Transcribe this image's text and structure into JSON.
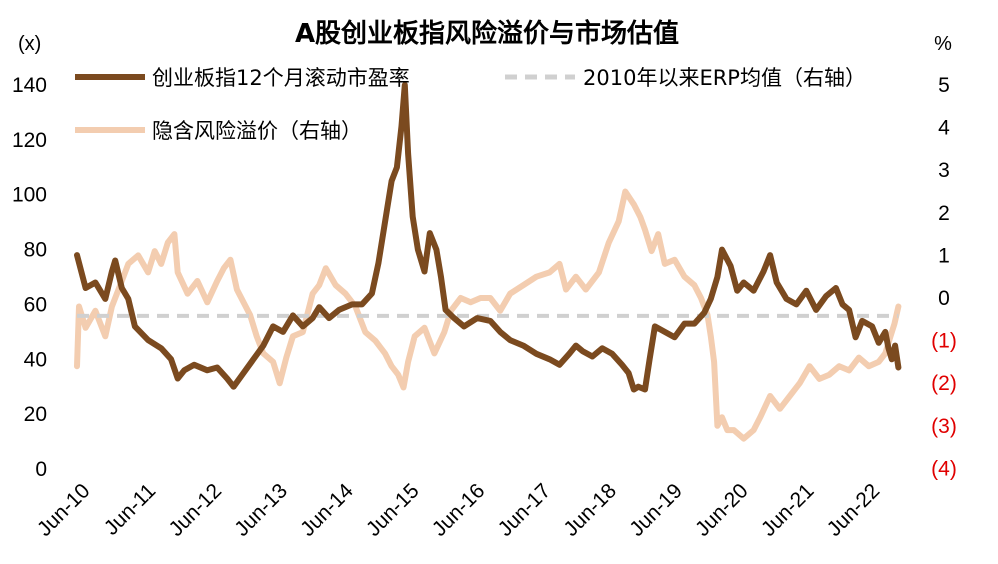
{
  "chart_data": {
    "type": "line",
    "title": "A股创业板指风险溢价与市场估值",
    "left_axis": {
      "unit": "(x)",
      "ylim": [
        0,
        150
      ],
      "ticks": [
        {
          "value": 0,
          "label": "0"
        },
        {
          "value": 20,
          "label": "20"
        },
        {
          "value": 40,
          "label": "40"
        },
        {
          "value": 60,
          "label": "60"
        },
        {
          "value": 80,
          "label": "80"
        },
        {
          "value": 100,
          "label": "100"
        },
        {
          "value": 120,
          "label": "120"
        },
        {
          "value": 140,
          "label": "140"
        }
      ]
    },
    "right_axis": {
      "unit": "%",
      "ylim": [
        -4,
        5.5
      ],
      "ticks": [
        {
          "value": 5,
          "label": "5"
        },
        {
          "value": 4,
          "label": "4"
        },
        {
          "value": 3,
          "label": "3"
        },
        {
          "value": 2,
          "label": "2"
        },
        {
          "value": 1,
          "label": "1"
        },
        {
          "value": 0,
          "label": "0"
        },
        {
          "value": -1,
          "label": "(1)"
        },
        {
          "value": -2,
          "label": "(2)"
        },
        {
          "value": -3,
          "label": "(3)"
        },
        {
          "value": -4,
          "label": "(4)"
        }
      ],
      "negative_label_color": "#e00000"
    },
    "x_axis": {
      "range": [
        2010.42,
        2023.0
      ],
      "ticks": [
        {
          "value": 2010.42,
          "label": "Jun-10"
        },
        {
          "value": 2011.42,
          "label": "Jun-11"
        },
        {
          "value": 2012.42,
          "label": "Jun-12"
        },
        {
          "value": 2013.42,
          "label": "Jun-13"
        },
        {
          "value": 2014.42,
          "label": "Jun-14"
        },
        {
          "value": 2015.42,
          "label": "Jun-15"
        },
        {
          "value": 2016.42,
          "label": "Jun-16"
        },
        {
          "value": 2017.42,
          "label": "Jun-17"
        },
        {
          "value": 2018.42,
          "label": "Jun-18"
        },
        {
          "value": 2019.42,
          "label": "Jun-19"
        },
        {
          "value": 2020.42,
          "label": "Jun-20"
        },
        {
          "value": 2021.42,
          "label": "Jun-21"
        },
        {
          "value": 2022.42,
          "label": "Jun-22"
        }
      ]
    },
    "legend": {
      "pe": "创业板指12个月滚动市盈率",
      "erp_avg": "2010年以来ERP均值（右轴）",
      "erp": "隐含风险溢价（右轴）"
    },
    "series": [
      {
        "key": "pe",
        "name": "创业板指12个月滚动市盈率",
        "axis": "left",
        "color": "#7b4a1f",
        "points": [
          [
            2010.42,
            78
          ],
          [
            2010.55,
            66
          ],
          [
            2010.7,
            68
          ],
          [
            2010.85,
            62
          ],
          [
            2010.95,
            72
          ],
          [
            2011.0,
            76
          ],
          [
            2011.1,
            66
          ],
          [
            2011.2,
            62
          ],
          [
            2011.3,
            52
          ],
          [
            2011.5,
            47
          ],
          [
            2011.7,
            44
          ],
          [
            2011.85,
            40
          ],
          [
            2011.95,
            33
          ],
          [
            2012.05,
            36
          ],
          [
            2012.2,
            38
          ],
          [
            2012.4,
            36
          ],
          [
            2012.55,
            37
          ],
          [
            2012.7,
            33
          ],
          [
            2012.8,
            30
          ],
          [
            2012.95,
            35
          ],
          [
            2013.1,
            40
          ],
          [
            2013.25,
            45
          ],
          [
            2013.4,
            52
          ],
          [
            2013.55,
            50
          ],
          [
            2013.7,
            56
          ],
          [
            2013.85,
            52
          ],
          [
            2014.0,
            55
          ],
          [
            2014.1,
            59
          ],
          [
            2014.25,
            55
          ],
          [
            2014.4,
            58
          ],
          [
            2014.6,
            60
          ],
          [
            2014.75,
            60
          ],
          [
            2014.9,
            64
          ],
          [
            2015.0,
            75
          ],
          [
            2015.1,
            90
          ],
          [
            2015.2,
            105
          ],
          [
            2015.28,
            110
          ],
          [
            2015.35,
            125
          ],
          [
            2015.4,
            140
          ],
          [
            2015.45,
            115
          ],
          [
            2015.52,
            92
          ],
          [
            2015.6,
            80
          ],
          [
            2015.7,
            72
          ],
          [
            2015.78,
            86
          ],
          [
            2015.88,
            80
          ],
          [
            2015.95,
            70
          ],
          [
            2016.02,
            58
          ],
          [
            2016.15,
            55
          ],
          [
            2016.3,
            52
          ],
          [
            2016.5,
            55
          ],
          [
            2016.7,
            54
          ],
          [
            2016.85,
            50
          ],
          [
            2017.0,
            47
          ],
          [
            2017.2,
            45
          ],
          [
            2017.4,
            42
          ],
          [
            2017.6,
            40
          ],
          [
            2017.75,
            38
          ],
          [
            2017.9,
            42
          ],
          [
            2018.0,
            45
          ],
          [
            2018.1,
            43
          ],
          [
            2018.25,
            41
          ],
          [
            2018.4,
            44
          ],
          [
            2018.55,
            42
          ],
          [
            2018.7,
            38
          ],
          [
            2018.8,
            35
          ],
          [
            2018.88,
            29
          ],
          [
            2018.95,
            30
          ],
          [
            2019.05,
            29
          ],
          [
            2019.12,
            40
          ],
          [
            2019.2,
            52
          ],
          [
            2019.35,
            50
          ],
          [
            2019.5,
            48
          ],
          [
            2019.65,
            53
          ],
          [
            2019.8,
            53
          ],
          [
            2019.95,
            57
          ],
          [
            2020.05,
            62
          ],
          [
            2020.15,
            70
          ],
          [
            2020.22,
            80
          ],
          [
            2020.35,
            74
          ],
          [
            2020.45,
            65
          ],
          [
            2020.55,
            68
          ],
          [
            2020.7,
            65
          ],
          [
            2020.85,
            72
          ],
          [
            2020.95,
            78
          ],
          [
            2021.05,
            68
          ],
          [
            2021.2,
            62
          ],
          [
            2021.35,
            60
          ],
          [
            2021.5,
            65
          ],
          [
            2021.65,
            58
          ],
          [
            2021.8,
            63
          ],
          [
            2021.95,
            66
          ],
          [
            2022.05,
            60
          ],
          [
            2022.15,
            58
          ],
          [
            2022.25,
            48
          ],
          [
            2022.35,
            54
          ],
          [
            2022.5,
            52
          ],
          [
            2022.6,
            46
          ],
          [
            2022.7,
            50
          ],
          [
            2022.75,
            44
          ],
          [
            2022.8,
            40
          ],
          [
            2022.85,
            45
          ],
          [
            2022.9,
            37
          ]
        ]
      },
      {
        "key": "erp",
        "name": "隐含风险溢价（右轴）",
        "axis": "right",
        "color": "#f3cdb0",
        "points": [
          [
            2010.42,
            -1.6
          ],
          [
            2010.45,
            -0.2
          ],
          [
            2010.55,
            -0.7
          ],
          [
            2010.7,
            -0.3
          ],
          [
            2010.85,
            -0.9
          ],
          [
            2010.95,
            -0.2
          ],
          [
            2011.05,
            0.2
          ],
          [
            2011.2,
            0.8
          ],
          [
            2011.35,
            1.0
          ],
          [
            2011.5,
            0.6
          ],
          [
            2011.6,
            1.1
          ],
          [
            2011.7,
            0.8
          ],
          [
            2011.8,
            1.3
          ],
          [
            2011.9,
            1.5
          ],
          [
            2011.95,
            0.6
          ],
          [
            2012.1,
            0.1
          ],
          [
            2012.25,
            0.4
          ],
          [
            2012.4,
            -0.1
          ],
          [
            2012.55,
            0.4
          ],
          [
            2012.65,
            0.7
          ],
          [
            2012.75,
            0.9
          ],
          [
            2012.85,
            0.2
          ],
          [
            2012.95,
            -0.1
          ],
          [
            2013.05,
            -0.4
          ],
          [
            2013.15,
            -0.9
          ],
          [
            2013.25,
            -1.3
          ],
          [
            2013.4,
            -1.5
          ],
          [
            2013.5,
            -2.0
          ],
          [
            2013.6,
            -1.4
          ],
          [
            2013.7,
            -0.9
          ],
          [
            2013.85,
            -0.8
          ],
          [
            2014.0,
            0.1
          ],
          [
            2014.1,
            0.3
          ],
          [
            2014.2,
            0.7
          ],
          [
            2014.35,
            0.3
          ],
          [
            2014.5,
            0.1
          ],
          [
            2014.65,
            -0.2
          ],
          [
            2014.8,
            -0.8
          ],
          [
            2014.95,
            -1.0
          ],
          [
            2015.1,
            -1.3
          ],
          [
            2015.2,
            -1.6
          ],
          [
            2015.3,
            -1.8
          ],
          [
            2015.38,
            -2.1
          ],
          [
            2015.45,
            -1.5
          ],
          [
            2015.55,
            -0.9
          ],
          [
            2015.7,
            -0.7
          ],
          [
            2015.85,
            -1.3
          ],
          [
            2016.0,
            -0.8
          ],
          [
            2016.1,
            -0.3
          ],
          [
            2016.25,
            0.0
          ],
          [
            2016.4,
            -0.1
          ],
          [
            2016.55,
            0.0
          ],
          [
            2016.7,
            0.0
          ],
          [
            2016.85,
            -0.3
          ],
          [
            2017.0,
            0.1
          ],
          [
            2017.2,
            0.3
          ],
          [
            2017.4,
            0.5
          ],
          [
            2017.6,
            0.6
          ],
          [
            2017.75,
            0.8
          ],
          [
            2017.85,
            0.2
          ],
          [
            2018.0,
            0.5
          ],
          [
            2018.15,
            0.2
          ],
          [
            2018.35,
            0.6
          ],
          [
            2018.5,
            1.3
          ],
          [
            2018.65,
            1.8
          ],
          [
            2018.75,
            2.5
          ],
          [
            2018.88,
            2.2
          ],
          [
            2018.98,
            1.9
          ],
          [
            2019.05,
            1.6
          ],
          [
            2019.15,
            1.1
          ],
          [
            2019.25,
            1.5
          ],
          [
            2019.35,
            0.8
          ],
          [
            2019.5,
            0.9
          ],
          [
            2019.65,
            0.5
          ],
          [
            2019.8,
            0.3
          ],
          [
            2019.9,
            0.0
          ],
          [
            2020.0,
            -0.4
          ],
          [
            2020.05,
            -0.9
          ],
          [
            2020.1,
            -1.5
          ],
          [
            2020.15,
            -3.0
          ],
          [
            2020.22,
            -2.8
          ],
          [
            2020.3,
            -3.1
          ],
          [
            2020.4,
            -3.1
          ],
          [
            2020.55,
            -3.3
          ],
          [
            2020.7,
            -3.1
          ],
          [
            2020.8,
            -2.8
          ],
          [
            2020.95,
            -2.3
          ],
          [
            2021.1,
            -2.6
          ],
          [
            2021.25,
            -2.3
          ],
          [
            2021.4,
            -2.0
          ],
          [
            2021.55,
            -1.6
          ],
          [
            2021.7,
            -1.9
          ],
          [
            2021.85,
            -1.8
          ],
          [
            2022.0,
            -1.6
          ],
          [
            2022.15,
            -1.7
          ],
          [
            2022.3,
            -1.4
          ],
          [
            2022.45,
            -1.6
          ],
          [
            2022.6,
            -1.5
          ],
          [
            2022.7,
            -1.3
          ],
          [
            2022.78,
            -0.9
          ],
          [
            2022.84,
            -0.6
          ],
          [
            2022.9,
            -0.2
          ]
        ]
      },
      {
        "key": "erp_avg",
        "name": "2010年以来ERP均值（右轴）",
        "axis": "right",
        "color": "#d0d0d0",
        "dashed": true,
        "points": [
          [
            2010.42,
            -0.42
          ],
          [
            2022.9,
            -0.42
          ]
        ]
      }
    ]
  }
}
